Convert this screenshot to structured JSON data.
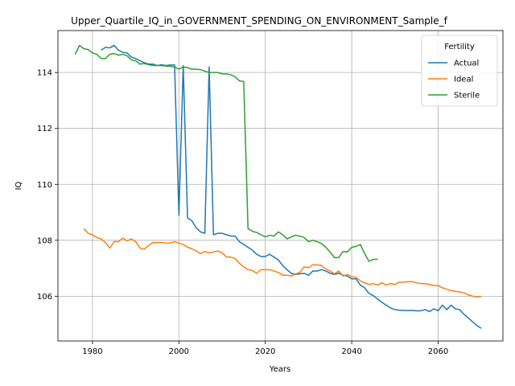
{
  "chart_data": {
    "type": "line",
    "title": "Upper_Quartile_IQ_in_GOVERNMENT_SPENDING_ON_ENVIRONMENT_Sample_f",
    "xlabel": "Years",
    "ylabel": "IQ",
    "xlim": [
      1972,
      2075
    ],
    "ylim": [
      104.4,
      115.5
    ],
    "xticks": [
      1980,
      2000,
      2020,
      2040,
      2060
    ],
    "yticks": [
      106,
      108,
      110,
      112,
      114
    ],
    "grid": true,
    "legend": {
      "title": "Fertility",
      "placement": "top-right"
    },
    "series": [
      {
        "name": "Actual",
        "color": "#1f77b4",
        "points": [
          [
            1982,
            114.8
          ],
          [
            1983,
            114.9
          ],
          [
            1984,
            114.88
          ],
          [
            1985,
            114.97
          ],
          [
            1986,
            114.8
          ],
          [
            1987,
            114.72
          ],
          [
            1988,
            114.7
          ],
          [
            1989,
            114.55
          ],
          [
            1990,
            114.5
          ],
          [
            1991,
            114.42
          ],
          [
            1992,
            114.35
          ],
          [
            1993,
            114.3
          ],
          [
            1994,
            114.3
          ],
          [
            1995,
            114.25
          ],
          [
            1996,
            114.28
          ],
          [
            1997,
            114.25
          ],
          [
            1998,
            114.27
          ],
          [
            1999,
            114.27
          ],
          [
            2000,
            108.9
          ],
          [
            2001,
            114.25
          ],
          [
            2002,
            108.8
          ],
          [
            2003,
            108.7
          ],
          [
            2004,
            108.45
          ],
          [
            2005,
            108.3
          ],
          [
            2006,
            108.25
          ],
          [
            2007,
            114.2
          ],
          [
            2008,
            108.2
          ],
          [
            2009,
            108.25
          ],
          [
            2010,
            108.25
          ],
          [
            2011,
            108.2
          ],
          [
            2012,
            108.15
          ],
          [
            2013,
            108.15
          ],
          [
            2014,
            107.95
          ],
          [
            2015,
            107.85
          ],
          [
            2016,
            107.75
          ],
          [
            2017,
            107.65
          ],
          [
            2018,
            107.5
          ],
          [
            2019,
            107.42
          ],
          [
            2020,
            107.42
          ],
          [
            2021,
            107.5
          ],
          [
            2022,
            107.4
          ],
          [
            2023,
            107.3
          ],
          [
            2024,
            107.1
          ],
          [
            2025,
            106.95
          ],
          [
            2026,
            106.82
          ],
          [
            2027,
            106.78
          ],
          [
            2028,
            106.8
          ],
          [
            2029,
            106.82
          ],
          [
            2030,
            106.75
          ],
          [
            2031,
            106.9
          ],
          [
            2032,
            106.9
          ],
          [
            2033,
            106.95
          ],
          [
            2034,
            106.9
          ],
          [
            2035,
            106.82
          ],
          [
            2036,
            106.78
          ],
          [
            2037,
            106.82
          ],
          [
            2038,
            106.75
          ],
          [
            2039,
            106.72
          ],
          [
            2040,
            106.62
          ],
          [
            2041,
            106.62
          ],
          [
            2042,
            106.4
          ],
          [
            2043,
            106.3
          ],
          [
            2044,
            106.1
          ],
          [
            2045,
            106.02
          ],
          [
            2046,
            105.9
          ],
          [
            2047,
            105.78
          ],
          [
            2048,
            105.68
          ],
          [
            2049,
            105.58
          ],
          [
            2050,
            105.52
          ],
          [
            2051,
            105.5
          ],
          [
            2052,
            105.49
          ],
          [
            2053,
            105.49
          ],
          [
            2054,
            105.49
          ],
          [
            2055,
            105.48
          ],
          [
            2056,
            105.48
          ],
          [
            2057,
            105.52
          ],
          [
            2058,
            105.45
          ],
          [
            2059,
            105.55
          ],
          [
            2060,
            105.48
          ],
          [
            2061,
            105.68
          ],
          [
            2062,
            105.52
          ],
          [
            2063,
            105.68
          ],
          [
            2064,
            105.55
          ],
          [
            2065,
            105.52
          ],
          [
            2066,
            105.35
          ],
          [
            2067,
            105.22
          ],
          [
            2068,
            105.08
          ],
          [
            2069,
            104.95
          ],
          [
            2070,
            104.85
          ]
        ]
      },
      {
        "name": "Ideal",
        "color": "#ff7f0e",
        "points": [
          [
            1978,
            108.42
          ],
          [
            1979,
            108.25
          ],
          [
            1980,
            108.2
          ],
          [
            1981,
            108.1
          ],
          [
            1982,
            108.05
          ],
          [
            1983,
            107.92
          ],
          [
            1984,
            107.72
          ],
          [
            1985,
            107.95
          ],
          [
            1986,
            107.95
          ],
          [
            1987,
            108.08
          ],
          [
            1988,
            107.98
          ],
          [
            1989,
            108.05
          ],
          [
            1990,
            107.95
          ],
          [
            1991,
            107.72
          ],
          [
            1992,
            107.68
          ],
          [
            1993,
            107.82
          ],
          [
            1994,
            107.92
          ],
          [
            1995,
            107.92
          ],
          [
            1996,
            107.92
          ],
          [
            1997,
            107.9
          ],
          [
            1998,
            107.9
          ],
          [
            1999,
            107.95
          ],
          [
            2000,
            107.9
          ],
          [
            2001,
            107.85
          ],
          [
            2002,
            107.75
          ],
          [
            2003,
            107.7
          ],
          [
            2004,
            107.62
          ],
          [
            2005,
            107.52
          ],
          [
            2006,
            107.6
          ],
          [
            2007,
            107.55
          ],
          [
            2008,
            107.58
          ],
          [
            2009,
            107.62
          ],
          [
            2010,
            107.55
          ],
          [
            2011,
            107.4
          ],
          [
            2012,
            107.4
          ],
          [
            2013,
            107.35
          ],
          [
            2014,
            107.18
          ],
          [
            2015,
            107.05
          ],
          [
            2016,
            106.95
          ],
          [
            2017,
            106.92
          ],
          [
            2018,
            106.82
          ],
          [
            2019,
            106.95
          ],
          [
            2020,
            106.95
          ],
          [
            2021,
            106.95
          ],
          [
            2022,
            106.9
          ],
          [
            2023,
            106.85
          ],
          [
            2024,
            106.75
          ],
          [
            2025,
            106.75
          ],
          [
            2026,
            106.72
          ],
          [
            2027,
            106.8
          ],
          [
            2028,
            106.85
          ],
          [
            2029,
            107.05
          ],
          [
            2030,
            107.02
          ],
          [
            2031,
            107.12
          ],
          [
            2032,
            107.12
          ],
          [
            2033,
            107.1
          ],
          [
            2034,
            106.98
          ],
          [
            2035,
            106.9
          ],
          [
            2036,
            106.8
          ],
          [
            2037,
            106.9
          ],
          [
            2038,
            106.72
          ],
          [
            2039,
            106.78
          ],
          [
            2040,
            106.7
          ],
          [
            2041,
            106.68
          ],
          [
            2042,
            106.55
          ],
          [
            2043,
            106.48
          ],
          [
            2044,
            106.42
          ],
          [
            2045,
            106.45
          ],
          [
            2046,
            106.4
          ],
          [
            2047,
            106.48
          ],
          [
            2048,
            106.4
          ],
          [
            2049,
            106.45
          ],
          [
            2050,
            106.42
          ],
          [
            2051,
            106.5
          ],
          [
            2052,
            106.5
          ],
          [
            2053,
            106.52
          ],
          [
            2054,
            106.52
          ],
          [
            2055,
            106.48
          ],
          [
            2056,
            106.45
          ],
          [
            2057,
            106.45
          ],
          [
            2058,
            106.42
          ],
          [
            2059,
            106.38
          ],
          [
            2060,
            106.38
          ],
          [
            2061,
            106.3
          ],
          [
            2062,
            106.25
          ],
          [
            2063,
            106.2
          ],
          [
            2064,
            106.18
          ],
          [
            2065,
            106.15
          ],
          [
            2066,
            106.12
          ],
          [
            2067,
            106.05
          ],
          [
            2068,
            106.0
          ],
          [
            2069,
            105.98
          ],
          [
            2070,
            105.98
          ]
        ]
      },
      {
        "name": "Sterile",
        "color": "#2ca02c",
        "points": [
          [
            1976,
            114.65
          ],
          [
            1977,
            114.97
          ],
          [
            1978,
            114.85
          ],
          [
            1979,
            114.82
          ],
          [
            1980,
            114.7
          ],
          [
            1981,
            114.65
          ],
          [
            1982,
            114.5
          ],
          [
            1983,
            114.5
          ],
          [
            1984,
            114.65
          ],
          [
            1985,
            114.68
          ],
          [
            1986,
            114.62
          ],
          [
            1987,
            114.65
          ],
          [
            1988,
            114.6
          ],
          [
            1989,
            114.45
          ],
          [
            1990,
            114.42
          ],
          [
            1991,
            114.3
          ],
          [
            1992,
            114.32
          ],
          [
            1993,
            114.28
          ],
          [
            1994,
            114.25
          ],
          [
            1995,
            114.25
          ],
          [
            1996,
            114.25
          ],
          [
            1997,
            114.23
          ],
          [
            1998,
            114.22
          ],
          [
            1999,
            114.2
          ],
          [
            2000,
            114.12
          ],
          [
            2001,
            114.2
          ],
          [
            2002,
            114.18
          ],
          [
            2003,
            114.12
          ],
          [
            2004,
            114.12
          ],
          [
            2005,
            114.1
          ],
          [
            2006,
            114.05
          ],
          [
            2007,
            114.0
          ],
          [
            2008,
            114.0
          ],
          [
            2009,
            114.0
          ],
          [
            2010,
            113.95
          ],
          [
            2011,
            113.95
          ],
          [
            2012,
            113.92
          ],
          [
            2013,
            113.85
          ],
          [
            2014,
            113.7
          ],
          [
            2015,
            113.68
          ],
          [
            2016,
            108.42
          ],
          [
            2017,
            108.32
          ],
          [
            2018,
            108.28
          ],
          [
            2019,
            108.2
          ],
          [
            2020,
            108.12
          ],
          [
            2021,
            108.18
          ],
          [
            2022,
            108.15
          ],
          [
            2023,
            108.3
          ],
          [
            2024,
            108.2
          ],
          [
            2025,
            108.05
          ],
          [
            2026,
            108.12
          ],
          [
            2027,
            108.18
          ],
          [
            2028,
            108.15
          ],
          [
            2029,
            108.1
          ],
          [
            2030,
            107.95
          ],
          [
            2031,
            108.0
          ],
          [
            2032,
            107.95
          ],
          [
            2033,
            107.88
          ],
          [
            2034,
            107.75
          ],
          [
            2035,
            107.58
          ],
          [
            2036,
            107.38
          ],
          [
            2037,
            107.38
          ],
          [
            2038,
            107.6
          ],
          [
            2039,
            107.58
          ],
          [
            2040,
            107.75
          ],
          [
            2041,
            107.78
          ],
          [
            2042,
            107.85
          ],
          [
            2043,
            107.52
          ],
          [
            2044,
            107.25
          ],
          [
            2045,
            107.32
          ],
          [
            2046,
            107.32
          ]
        ]
      }
    ]
  }
}
